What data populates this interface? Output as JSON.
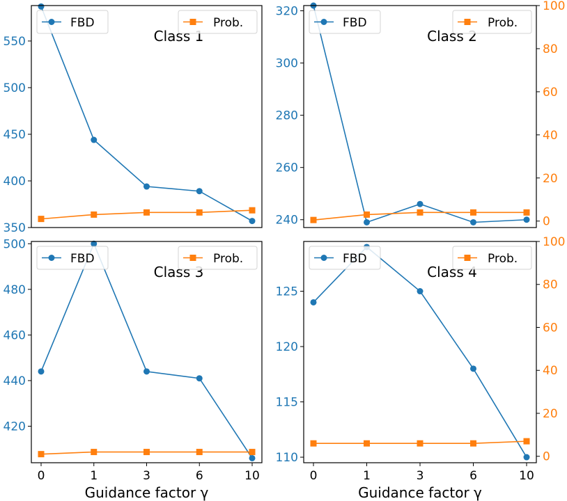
{
  "colors": {
    "fbd": "#1f77b4",
    "prob": "#ff7f0e",
    "axis": "#000000"
  },
  "legend": {
    "fbd_label": "FBD",
    "prob_label": "Prob."
  },
  "xlabel": "Guidance factor γ",
  "chart_data": [
    {
      "type": "line",
      "title": "Class 1",
      "categories": [
        "0",
        "1",
        "3",
        "6",
        "10"
      ],
      "series": [
        {
          "name": "FBD",
          "axis": "left",
          "values": [
            587,
            444,
            394,
            389,
            357
          ]
        },
        {
          "name": "Prob.",
          "axis": "right",
          "values": [
            1,
            3,
            4,
            4,
            5
          ]
        }
      ],
      "y_left": {
        "range": [
          350,
          588
        ],
        "ticks": [
          350,
          400,
          450,
          500,
          550
        ]
      },
      "y_right": {
        "range": [
          -3,
          100
        ],
        "ticks": []
      },
      "xlabel": "",
      "legend": [
        "upper-left",
        "upper-right"
      ]
    },
    {
      "type": "line",
      "title": "Class 2",
      "categories": [
        "0",
        "1",
        "3",
        "6",
        "10"
      ],
      "series": [
        {
          "name": "FBD",
          "axis": "left",
          "values": [
            322,
            239,
            246,
            239,
            240
          ]
        },
        {
          "name": "Prob.",
          "axis": "right",
          "values": [
            0.5,
            3,
            4,
            4,
            4
          ]
        }
      ],
      "y_left": {
        "range": [
          237,
          322
        ],
        "ticks": [
          240,
          260,
          280,
          300,
          320
        ]
      },
      "y_right": {
        "range": [
          -3,
          100
        ],
        "ticks": [
          0,
          20,
          40,
          60,
          80,
          100
        ]
      },
      "xlabel": "",
      "legend": [
        "upper-left",
        "upper-right"
      ]
    },
    {
      "type": "line",
      "title": "Class 3",
      "categories": [
        "0",
        "1",
        "3",
        "6",
        "10"
      ],
      "series": [
        {
          "name": "FBD",
          "axis": "left",
          "values": [
            444,
            500,
            444,
            441,
            406
          ]
        },
        {
          "name": "Prob.",
          "axis": "right",
          "values": [
            1,
            2,
            2,
            2,
            2
          ]
        }
      ],
      "y_left": {
        "range": [
          404,
          501
        ],
        "ticks": [
          420,
          440,
          460,
          480,
          500
        ]
      },
      "y_right": {
        "range": [
          -3,
          100
        ],
        "ticks": []
      },
      "xlabel": "Guidance factor γ",
      "legend": [
        "upper-left",
        "upper-right"
      ]
    },
    {
      "type": "line",
      "title": "Class 4",
      "categories": [
        "0",
        "1",
        "3",
        "6",
        "10"
      ],
      "series": [
        {
          "name": "FBD",
          "axis": "left",
          "values": [
            124,
            129,
            125,
            118,
            110
          ]
        },
        {
          "name": "Prob.",
          "axis": "right",
          "values": [
            6,
            6,
            6,
            6,
            7
          ]
        }
      ],
      "y_left": {
        "range": [
          109.5,
          129.5
        ],
        "ticks": [
          110,
          115,
          120,
          125
        ]
      },
      "y_right": {
        "range": [
          -3,
          100
        ],
        "ticks": [
          0,
          20,
          40,
          60,
          80,
          100
        ]
      },
      "xlabel": "Guidance factor γ",
      "legend": [
        "upper-left",
        "upper-right"
      ]
    }
  ]
}
